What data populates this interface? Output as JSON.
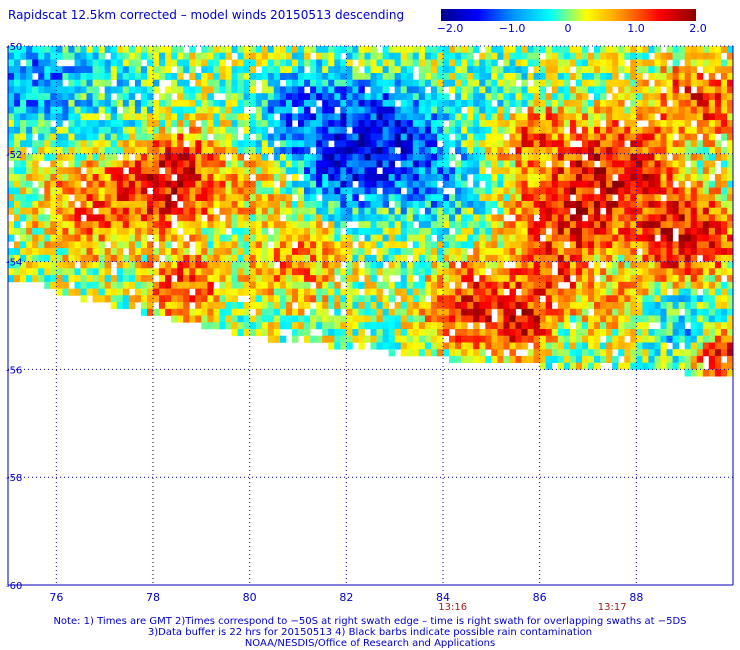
{
  "header": {
    "title": "Rapidscat 12.5km corrected – model winds 20150513 descending"
  },
  "colorbar": {
    "ticks": [
      "−2.0",
      "−1.0",
      "0",
      "1.0",
      "2.0"
    ],
    "range": [
      -2.0,
      2.0
    ],
    "colors": [
      "#00008b",
      "#0000ff",
      "#0096ff",
      "#00ffff",
      "#ffff00",
      "#ff8c00",
      "#ff0000",
      "#8b0000"
    ]
  },
  "notes": {
    "line1": "Note: 1) Times are GMT 2)Times correspond to −50S at right swath edge – time is right swath for overlapping swaths at −5DS",
    "line2": "3)Data buffer is 22 hrs for 20150513 4) Black barbs indicate possible rain contamination",
    "line3": "NOAA/NESDIS/Office of Research and Applications"
  },
  "chart_data": {
    "type": "heatmap",
    "title": "Rapidscat 12.5km corrected – model winds 20150513 descending",
    "x_ticks": [
      "76",
      "78",
      "80",
      "82",
      "84",
      "86",
      "88"
    ],
    "y_ticks": [
      "-50",
      "-52",
      "-54",
      "-56",
      "-58",
      "-60"
    ],
    "xlim": [
      75.0,
      90.0
    ],
    "ylim": [
      -60.0,
      -50.0
    ],
    "grid": true,
    "colorbar_range": [
      -2.0,
      2.0
    ],
    "time_labels": [
      {
        "x": 84.2,
        "label": "13:16"
      },
      {
        "x": 87.5,
        "label": "13:17"
      }
    ],
    "swath_polygon": [
      [
        75.0,
        -50.0
      ],
      [
        90.0,
        -50.0
      ],
      [
        90.0,
        -56.1
      ],
      [
        85.0,
        -55.9
      ],
      [
        80.0,
        -55.4
      ],
      [
        77.0,
        -54.8
      ],
      [
        75.0,
        -54.3
      ]
    ],
    "features": [
      {
        "lon": 78.3,
        "lat": -52.5,
        "value": 2.0,
        "radius": 0.9
      },
      {
        "lon": 76.8,
        "lat": -53.0,
        "value": 1.2,
        "radius": 0.9
      },
      {
        "lon": 78.6,
        "lat": -54.5,
        "value": 1.6,
        "radius": 0.6
      },
      {
        "lon": 77.0,
        "lat": -51.0,
        "value": -0.5,
        "radius": 1.0
      },
      {
        "lon": 75.6,
        "lat": -50.7,
        "value": -1.2,
        "radius": 0.8
      },
      {
        "lon": 82.5,
        "lat": -51.9,
        "value": -2.0,
        "radius": 1.2
      },
      {
        "lon": 81.2,
        "lat": -51.3,
        "value": -1.3,
        "radius": 0.8
      },
      {
        "lon": 80.0,
        "lat": -52.6,
        "value": 0.7,
        "radius": 0.7
      },
      {
        "lon": 81.0,
        "lat": -54.0,
        "value": 1.0,
        "radius": 0.8
      },
      {
        "lon": 83.0,
        "lat": -53.6,
        "value": 0.0,
        "radius": 0.8
      },
      {
        "lon": 83.8,
        "lat": -52.6,
        "value": -0.9,
        "radius": 0.7
      },
      {
        "lon": 84.7,
        "lat": -54.8,
        "value": 1.7,
        "radius": 0.8
      },
      {
        "lon": 85.7,
        "lat": -55.2,
        "value": 2.0,
        "radius": 0.5
      },
      {
        "lon": 86.2,
        "lat": -54.3,
        "value": 1.6,
        "radius": 0.6
      },
      {
        "lon": 87.5,
        "lat": -52.4,
        "value": 2.0,
        "radius": 1.0
      },
      {
        "lon": 86.5,
        "lat": -53.2,
        "value": 1.8,
        "radius": 0.8
      },
      {
        "lon": 89.0,
        "lat": -53.5,
        "value": 2.0,
        "radius": 0.8
      },
      {
        "lon": 89.3,
        "lat": -51.0,
        "value": 1.6,
        "radius": 0.7
      },
      {
        "lon": 85.8,
        "lat": -51.6,
        "value": 1.5,
        "radius": 0.6
      },
      {
        "lon": 85.3,
        "lat": -50.9,
        "value": -0.5,
        "radius": 0.6
      },
      {
        "lon": 87.5,
        "lat": -54.8,
        "value": 0.8,
        "radius": 0.6
      },
      {
        "lon": 88.9,
        "lat": -55.2,
        "value": -0.8,
        "radius": 0.6
      },
      {
        "lon": 89.7,
        "lat": -55.7,
        "value": 2.0,
        "radius": 0.4
      },
      {
        "lon": 86.8,
        "lat": -55.6,
        "value": 0.2,
        "radius": 0.6
      }
    ]
  }
}
